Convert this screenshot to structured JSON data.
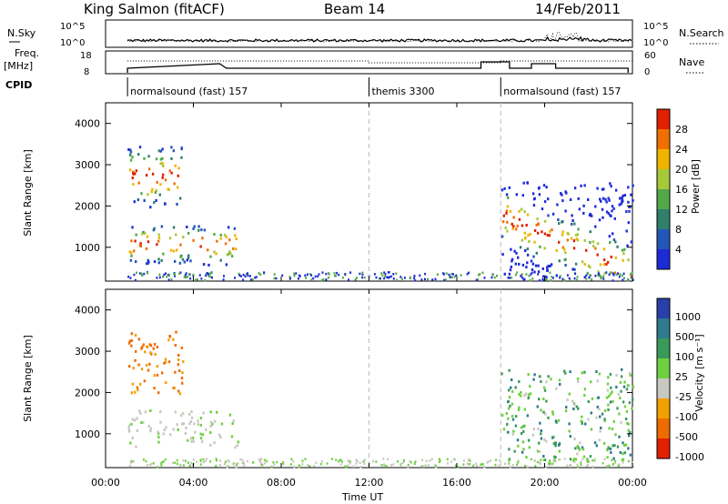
{
  "header": {
    "title": "King Salmon (fitACF)",
    "beam": "Beam 14",
    "date": "14/Feb/2011"
  },
  "top_panels": {
    "nsky_label": "N.Sky",
    "nsky_ticks": [
      "10^5",
      "10^0"
    ],
    "nsearch_label": "N.Search",
    "nsearch_ticks": [
      "10^5",
      "10^0"
    ],
    "freq_label": "Freq.",
    "freq_unit": "[MHz]",
    "freq_ticks": [
      "18",
      "8"
    ],
    "nave_label": "Nave",
    "nave_ticks": [
      "60",
      "0"
    ],
    "cpid_label": "CPID",
    "cpid_segments": [
      {
        "label": "normalsound (fast) 157",
        "start_hr": 1.0
      },
      {
        "label": "themis 3300",
        "start_hr": 12.0
      },
      {
        "label": "normalsound (fast) 157",
        "start_hr": 18.0
      }
    ]
  },
  "x_axis": {
    "label": "Time UT",
    "ticks": [
      "00:00",
      "04:00",
      "08:00",
      "12:00",
      "16:00",
      "20:00",
      "00:00"
    ],
    "range_hr": [
      0,
      24
    ]
  },
  "power_panel": {
    "ylabel": "Slant Range [km]",
    "yticks": [
      "1000",
      "2000",
      "3000",
      "4000"
    ],
    "colorbar_label": "Power [dB]",
    "colorbar_ticks": [
      "4",
      "8",
      "12",
      "16",
      "20",
      "24",
      "28"
    ],
    "colors": [
      "#1d2bd6",
      "#2456b8",
      "#2f7f6a",
      "#53a84a",
      "#a6c93a",
      "#f0b400",
      "#ef7000",
      "#e02000"
    ]
  },
  "velocity_panel": {
    "ylabel": "Slant Range [km]",
    "yticks": [
      "1000",
      "2000",
      "3000",
      "4000"
    ],
    "colorbar_label": "Velocity [m s⁻¹]",
    "colorbar_ticks": [
      "1000",
      "500",
      "100",
      "25",
      "-25",
      "-100",
      "-500",
      "-1000"
    ],
    "colors": [
      "#2a3fa8",
      "#2e7b8e",
      "#3a9a5a",
      "#6fd040",
      "#c8c8c0",
      "#f0a000",
      "#ef6b00",
      "#e02000"
    ]
  },
  "chart_data": [
    {
      "type": "heatmap",
      "title": "Power [dB]",
      "xlabel": "Time UT",
      "ylabel": "Slant Range [km]",
      "xlim": [
        0,
        24
      ],
      "ylim": [
        180,
        4500
      ],
      "zlim": [
        0,
        30
      ],
      "regions": [
        {
          "t": [
            1.0,
            6.0
          ],
          "range_km": [
            600,
            1600
          ],
          "peak_db": 28
        },
        {
          "t": [
            1.0,
            3.5
          ],
          "range_km": [
            2000,
            3500
          ],
          "peak_db": 26
        },
        {
          "t": [
            18.0,
            24.0
          ],
          "range_km": [
            300,
            2600
          ],
          "peak_db": 28
        }
      ]
    },
    {
      "type": "heatmap",
      "title": "Velocity [m s⁻¹]",
      "xlabel": "Time UT",
      "ylabel": "Slant Range [km]",
      "xlim": [
        0,
        24
      ],
      "ylim": [
        180,
        4500
      ],
      "zlim": [
        -1000,
        1000
      ],
      "regions": [
        {
          "t": [
            1.0,
            6.0
          ],
          "range_km": [
            700,
            1600
          ],
          "velocity": 0
        },
        {
          "t": [
            1.0,
            3.5
          ],
          "range_km": [
            2000,
            3500
          ],
          "velocity": -300
        },
        {
          "t": [
            18.0,
            24.0
          ],
          "range_km": [
            300,
            2600
          ],
          "velocity": 150
        }
      ]
    }
  ]
}
